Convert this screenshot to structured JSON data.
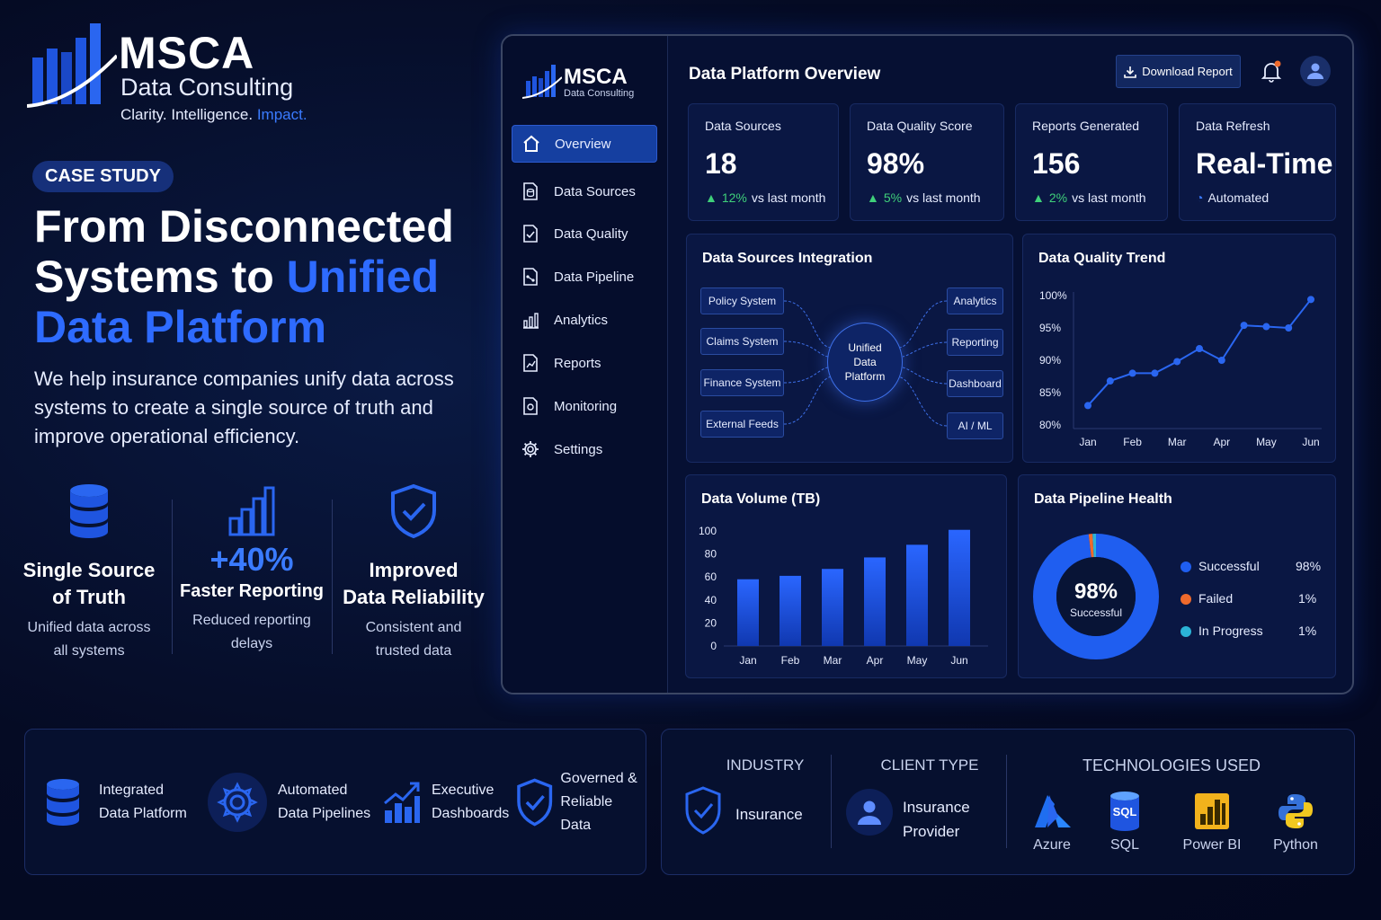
{
  "brand": {
    "name": "MSCA",
    "subtitle": "Data Consulting",
    "tagline_main": "Clarity. Intelligence.",
    "tagline_accent": "Impact."
  },
  "hero": {
    "badge": "CASE STUDY",
    "headline_line1": "From Disconnected",
    "headline_line2_plain": "Systems to ",
    "headline_line2_blue": "Unified",
    "headline_line3_blue": "Data Platform",
    "lead": "We help insurance companies unify data across systems to create a single source of truth and improve operational efficiency."
  },
  "features": [
    {
      "title_line1": "Single Source",
      "title_line2": "of Truth",
      "desc_line1": "Unified data across",
      "desc_line2": "all systems"
    },
    {
      "big": "+40%",
      "title": "Faster Reporting",
      "desc_line1": "Reduced reporting",
      "desc_line2": "delays"
    },
    {
      "title_line1": "Improved",
      "title_line2": "Data Reliability",
      "desc_line1": "Consistent and",
      "desc_line2": "trusted data"
    }
  ],
  "dashboard": {
    "title": "Data Platform Overview",
    "download_label": "Download Report",
    "sidebar": {
      "name": "MSCA",
      "sub": "Data Consulting",
      "items": [
        {
          "label": "Overview",
          "icon": "home-icon",
          "active": true
        },
        {
          "label": "Data Sources",
          "icon": "database-file-icon"
        },
        {
          "label": "Data Quality",
          "icon": "check-file-icon"
        },
        {
          "label": "Data Pipeline",
          "icon": "pipeline-icon"
        },
        {
          "label": "Analytics",
          "icon": "bar-chart-icon"
        },
        {
          "label": "Reports",
          "icon": "report-icon"
        },
        {
          "label": "Monitoring",
          "icon": "monitor-icon"
        },
        {
          "label": "Settings",
          "icon": "gear-icon"
        }
      ]
    },
    "kpis": [
      {
        "label": "Data Sources",
        "value": "18",
        "delta": "12%",
        "suffix": "vs last month"
      },
      {
        "label": "Data Quality Score",
        "value": "98%",
        "delta": "5%",
        "suffix": "vs last month"
      },
      {
        "label": "Reports Generated",
        "value": "156",
        "delta": "2%",
        "suffix": "vs last month"
      },
      {
        "label": "Data Refresh",
        "value": "Real-Time",
        "note": "Automated"
      }
    ],
    "integration": {
      "title": "Data Sources Integration",
      "sources": [
        "Policy System",
        "Claims System",
        "Finance System",
        "External Feeds"
      ],
      "hub": [
        "Unified",
        "Data",
        "Platform"
      ],
      "targets": [
        "Analytics",
        "Reporting",
        "Dashboard",
        "AI / ML"
      ]
    },
    "quality_trend": {
      "title": "Data Quality Trend",
      "chart_data": {
        "type": "line",
        "x": [
          "Jan",
          "",
          "Feb",
          "",
          "Mar",
          "",
          "Apr",
          "",
          "May",
          "",
          "Jun"
        ],
        "x_ticks": [
          "Jan",
          "Feb",
          "Mar",
          "Apr",
          "May",
          "Jun"
        ],
        "y_ticks": [
          "100%",
          "95%",
          "90%",
          "85%",
          "80%"
        ],
        "values": [
          83,
          86.8,
          88,
          88,
          89.8,
          91.8,
          90,
          95.4,
          95.2,
          95,
          99.4
        ],
        "ylim": [
          80,
          100
        ]
      }
    },
    "volume": {
      "title": "Data Volume (TB)",
      "chart_data": {
        "type": "bar",
        "categories": [
          "Jan",
          "Feb",
          "Mar",
          "Apr",
          "May",
          "Jun"
        ],
        "values": [
          58,
          61,
          67,
          77,
          88,
          101
        ],
        "y_ticks": [
          "100",
          "80",
          "60",
          "40",
          "20",
          "0"
        ],
        "ylim": [
          0,
          100
        ]
      }
    },
    "pipeline": {
      "title": "Data Pipeline Health",
      "center_value": "98%",
      "center_label": "Successful",
      "chart_data": {
        "type": "pie",
        "labels": [
          "Successful",
          "Failed",
          "In Progress"
        ],
        "display": [
          "98%",
          "1%",
          "1%"
        ],
        "values": [
          98,
          1,
          1
        ],
        "colors": [
          "#1f5ef0",
          "#ef6a2c",
          "#2bb3d6"
        ]
      }
    }
  },
  "capabilities": [
    {
      "line1": "Integrated",
      "line2": "Data Platform",
      "icon": "database-icon"
    },
    {
      "line1": "Automated",
      "line2": "Data Pipelines",
      "icon": "gear-icon"
    },
    {
      "line1": "Executive",
      "line2": "Dashboards",
      "icon": "growth-chart-icon"
    },
    {
      "line1": "Governed &",
      "line2": "Reliable Data",
      "icon": "shield-check-icon"
    }
  ],
  "info": {
    "industry_label": "INDUSTRY",
    "industry_value": "Insurance",
    "client_label": "CLIENT TYPE",
    "client_line1": "Insurance",
    "client_line2": "Provider",
    "tech_label": "TECHNOLOGIES USED",
    "sql_icon_text": "SQL",
    "technologies": [
      "Azure",
      "SQL",
      "Power BI",
      "Python"
    ]
  }
}
